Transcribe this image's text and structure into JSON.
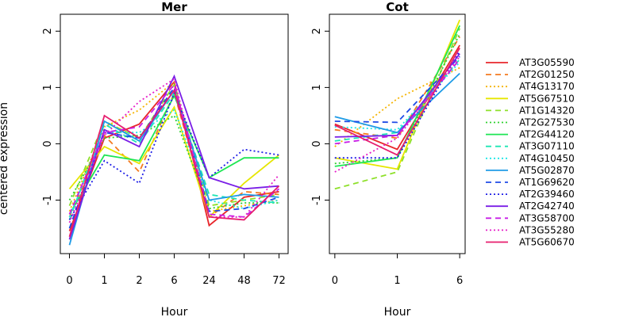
{
  "chart_data": {
    "type": "line",
    "ylabel": "centered expression",
    "yticks": [
      -1,
      0,
      1,
      2
    ],
    "ylim": [
      -1.95,
      2.3
    ],
    "legend_position": "right",
    "series": [
      {
        "name": "AT3G05590",
        "color": "#e8262b",
        "dash": "solid"
      },
      {
        "name": "AT2G01250",
        "color": "#f47a20",
        "dash": "dashed"
      },
      {
        "name": "AT4G13170",
        "color": "#f5b400",
        "dash": "dotted"
      },
      {
        "name": "AT5G67510",
        "color": "#e6e600",
        "dash": "solid"
      },
      {
        "name": "AT1G14320",
        "color": "#8ee02a",
        "dash": "dashed"
      },
      {
        "name": "AT2G27530",
        "color": "#2fd12f",
        "dash": "dotted"
      },
      {
        "name": "AT2G44120",
        "color": "#1ee654",
        "dash": "solid"
      },
      {
        "name": "AT3G07110",
        "color": "#1ee6b4",
        "dash": "dashed"
      },
      {
        "name": "AT4G10450",
        "color": "#1ee6e6",
        "dash": "dotted"
      },
      {
        "name": "AT5G02870",
        "color": "#1e9be6",
        "dash": "solid"
      },
      {
        "name": "AT1G69620",
        "color": "#1e4be6",
        "dash": "dashed"
      },
      {
        "name": "AT2G39460",
        "color": "#1e1ee6",
        "dash": "dotted"
      },
      {
        "name": "AT2G42740",
        "color": "#7a1ee6",
        "dash": "solid"
      },
      {
        "name": "AT3G58700",
        "color": "#c81ee6",
        "dash": "dashed"
      },
      {
        "name": "AT3G55280",
        "color": "#e61ec8",
        "dash": "dotted"
      },
      {
        "name": "AT5G60670",
        "color": "#e61e6e",
        "dash": "solid"
      }
    ],
    "panels": [
      {
        "title": "Mer",
        "xlabel": "Hour",
        "x": [
          "0",
          "1",
          "2",
          "6",
          "24",
          "48",
          "72"
        ],
        "values": [
          [
            -1.55,
            0.1,
            0.35,
            1.1,
            -1.45,
            -0.95,
            -0.85
          ],
          [
            -1.3,
            0.15,
            -0.5,
            0.9,
            -1.3,
            -0.85,
            -0.9
          ],
          [
            -1.2,
            0.3,
            0.6,
            1.1,
            -1.2,
            -1.1,
            -1.0
          ],
          [
            -0.8,
            -0.05,
            -0.35,
            0.65,
            -1.3,
            -0.7,
            -0.2
          ],
          [
            -1.1,
            0.4,
            0.1,
            1.05,
            -1.1,
            -1.0,
            -0.9
          ],
          [
            -1.0,
            0.1,
            0.15,
            0.5,
            -1.15,
            -1.05,
            -1.05
          ],
          [
            -1.25,
            -0.2,
            -0.3,
            0.85,
            -0.6,
            -0.25,
            -0.25
          ],
          [
            -1.35,
            0.35,
            0.0,
            0.9,
            -0.9,
            -1.0,
            -1.05
          ],
          [
            -1.3,
            0.2,
            0.2,
            0.6,
            -1.0,
            -1.15,
            -1.0
          ],
          [
            -1.8,
            0.4,
            0.05,
            0.95,
            -1.0,
            -0.9,
            -0.95
          ],
          [
            -1.5,
            0.2,
            0.1,
            1.0,
            -1.2,
            -1.15,
            -0.95
          ],
          [
            -1.35,
            -0.3,
            -0.7,
            0.9,
            -0.6,
            -0.1,
            -0.2
          ],
          [
            -1.7,
            0.25,
            -0.05,
            1.2,
            -0.6,
            -0.8,
            -0.75
          ],
          [
            -1.25,
            0.2,
            0.3,
            1.05,
            -1.25,
            -1.3,
            -0.8
          ],
          [
            -1.4,
            0.15,
            0.75,
            1.15,
            -1.3,
            -1.3,
            -0.55
          ],
          [
            -1.65,
            0.5,
            0.1,
            0.95,
            -1.3,
            -1.35,
            -0.75
          ]
        ]
      },
      {
        "title": "Cot",
        "xlabel": "Hour",
        "x": [
          "0",
          "1",
          "6"
        ],
        "values": [
          [
            0.35,
            -0.1,
            1.75
          ],
          [
            0.25,
            0.1,
            1.9
          ],
          [
            -0.05,
            0.8,
            1.35
          ],
          [
            -0.25,
            -0.45,
            2.2
          ],
          [
            -0.8,
            -0.5,
            2.05
          ],
          [
            -0.35,
            -0.25,
            1.95
          ],
          [
            -0.4,
            -0.25,
            2.1
          ],
          [
            0.05,
            0.2,
            1.5
          ],
          [
            0.3,
            0.25,
            1.45
          ],
          [
            0.48,
            0.2,
            1.25
          ],
          [
            0.4,
            0.38,
            1.55
          ],
          [
            -0.25,
            -0.25,
            1.65
          ],
          [
            0.12,
            0.15,
            1.6
          ],
          [
            0.0,
            0.15,
            1.5
          ],
          [
            -0.5,
            0.1,
            1.55
          ],
          [
            0.33,
            -0.2,
            1.7
          ]
        ]
      }
    ]
  }
}
